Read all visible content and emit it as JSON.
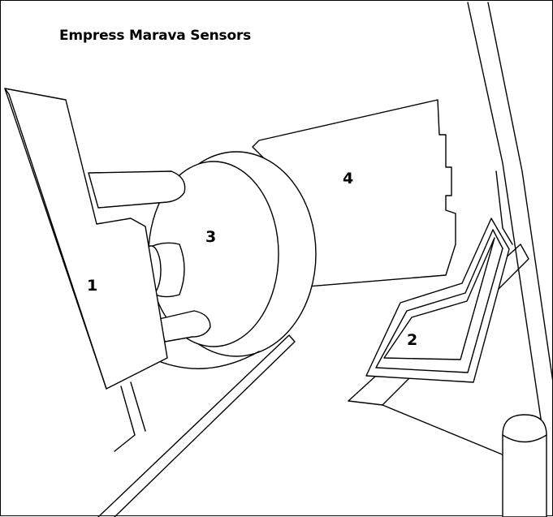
{
  "diagram": {
    "title": "Empress Marava Sensors",
    "labels": [
      {
        "id": "1",
        "text": "1"
      },
      {
        "id": "2",
        "text": "2"
      },
      {
        "id": "3",
        "text": "3"
      },
      {
        "id": "4",
        "text": "4"
      }
    ]
  },
  "colors": {
    "line": "#000000",
    "background": "#ffffff"
  }
}
